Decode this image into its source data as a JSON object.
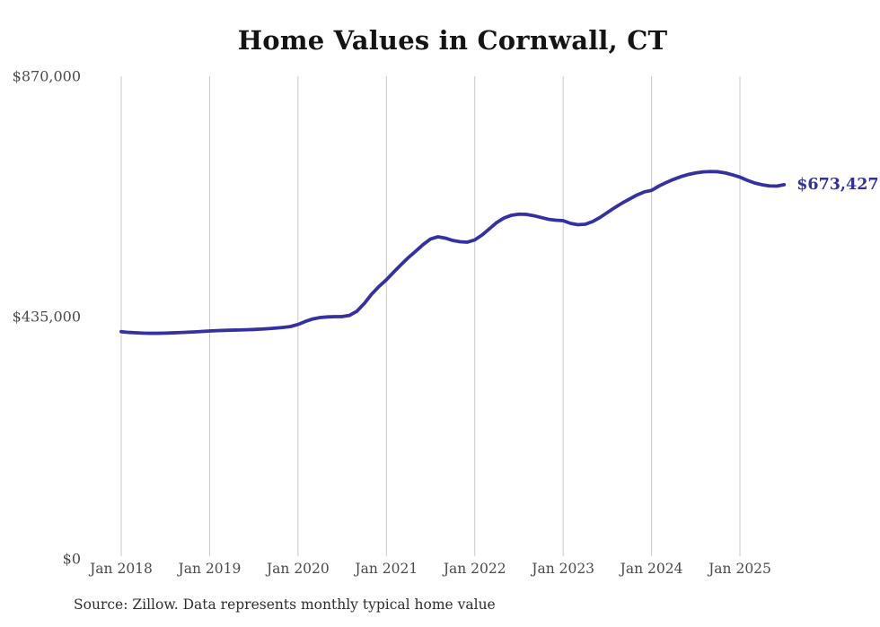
{
  "chart_data": {
    "type": "line",
    "title": "Home Values in Cornwall, CT",
    "source_note": "Source: Zillow. Data represents monthly typical home value",
    "end_label": "$673,427",
    "final_value": 673427,
    "legend": "none",
    "grid": "vertical-yearly",
    "colors": {
      "line": "#3531a0",
      "end_label": "#32329b",
      "grid": "#c9c9c9",
      "axis_text": "#4a4a4a",
      "title": "#141414",
      "source": "#2e2e2e",
      "background": "#ffffff"
    },
    "y_axis": {
      "min": 0,
      "max": 870000,
      "tick_labels": [
        "$870,000",
        "$435,000",
        "$0"
      ],
      "tick_values": [
        870000,
        435000,
        0
      ]
    },
    "x_axis": {
      "tick_labels": [
        "Jan 2018",
        "Jan 2019",
        "Jan 2020",
        "Jan 2021",
        "Jan 2022",
        "Jan 2023",
        "Jan 2024",
        "Jan 2025"
      ]
    },
    "series": [
      {
        "name": "Typical home value (monthly)",
        "months": [
          "2018-01",
          "2018-02",
          "2018-03",
          "2018-04",
          "2018-05",
          "2018-06",
          "2018-07",
          "2018-08",
          "2018-09",
          "2018-10",
          "2018-11",
          "2018-12",
          "2019-01",
          "2019-02",
          "2019-03",
          "2019-04",
          "2019-05",
          "2019-06",
          "2019-07",
          "2019-08",
          "2019-09",
          "2019-10",
          "2019-11",
          "2019-12",
          "2020-01",
          "2020-02",
          "2020-03",
          "2020-04",
          "2020-05",
          "2020-06",
          "2020-07",
          "2020-08",
          "2020-09",
          "2020-10",
          "2020-11",
          "2020-12",
          "2021-01",
          "2021-02",
          "2021-03",
          "2021-04",
          "2021-05",
          "2021-06",
          "2021-07",
          "2021-08",
          "2021-09",
          "2021-10",
          "2021-11",
          "2021-12",
          "2022-01",
          "2022-02",
          "2022-03",
          "2022-04",
          "2022-05",
          "2022-06",
          "2022-07",
          "2022-08",
          "2022-09",
          "2022-10",
          "2022-11",
          "2022-12",
          "2023-01",
          "2023-02",
          "2023-03",
          "2023-04",
          "2023-05",
          "2023-06",
          "2023-07",
          "2023-08",
          "2023-09",
          "2023-10",
          "2023-11",
          "2023-12",
          "2024-01",
          "2024-02",
          "2024-03",
          "2024-04",
          "2024-05",
          "2024-06",
          "2024-07",
          "2024-08",
          "2024-09",
          "2024-10",
          "2024-11",
          "2024-12",
          "2025-01",
          "2025-02",
          "2025-03",
          "2025-04",
          "2025-05",
          "2025-06",
          "2025-07"
        ],
        "values": [
          407000,
          405600,
          404900,
          404300,
          404000,
          404000,
          404300,
          404800,
          405300,
          405900,
          406600,
          407400,
          408200,
          408800,
          409300,
          409700,
          410000,
          410400,
          410900,
          411600,
          412400,
          413400,
          414700,
          416300,
          420000,
          425500,
          430000,
          432500,
          433700,
          434200,
          434300,
          436500,
          444000,
          458000,
          475000,
          489000,
          501000,
          515000,
          528500,
          541500,
          553000,
          565000,
          575000,
          578900,
          576500,
          572400,
          570000,
          569200,
          573300,
          582200,
          593600,
          605000,
          613200,
          618000,
          620000,
          619600,
          617200,
          614000,
          610700,
          609000,
          608200,
          603300,
          600900,
          601700,
          606600,
          614000,
          622900,
          631800,
          640000,
          647300,
          654600,
          660300,
          663000,
          670900,
          677400,
          683100,
          688000,
          692000,
          694800,
          696600,
          697200,
          696900,
          694800,
          691200,
          687100,
          681400,
          676500,
          673300,
          671200,
          670800,
          673427
        ]
      }
    ]
  }
}
